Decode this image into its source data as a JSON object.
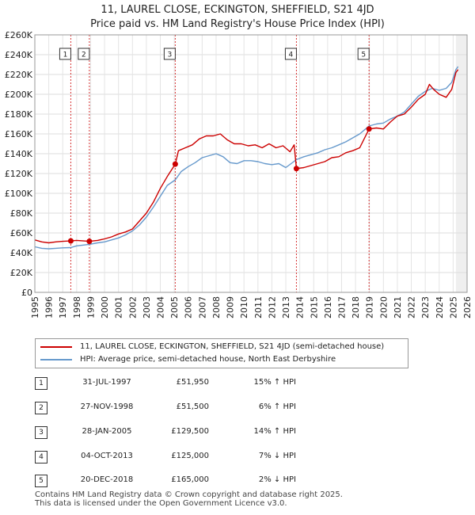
{
  "chart_data": {
    "type": "line",
    "title": "11, LAUREL CLOSE, ECKINGTON, SHEFFIELD, S21 4JD",
    "subtitle": "Price paid vs. HM Land Registry's House Price Index (HPI)",
    "xlim": [
      1995,
      2026
    ],
    "ylim": [
      0,
      260000
    ],
    "x_ticks": [
      1995,
      1996,
      1997,
      1998,
      1999,
      2000,
      2001,
      2002,
      2003,
      2004,
      2005,
      2006,
      2007,
      2008,
      2009,
      2010,
      2011,
      2012,
      2013,
      2014,
      2015,
      2016,
      2017,
      2018,
      2019,
      2020,
      2021,
      2022,
      2023,
      2024,
      2025,
      2026
    ],
    "x_tick_labels": [
      "1995",
      "1996",
      "1997",
      "1998",
      "1999",
      "2000",
      "2001",
      "2002",
      "2003",
      "2004",
      "2005",
      "2006",
      "2007",
      "2008",
      "2009",
      "2010",
      "2011",
      "2012",
      "2013",
      "2014",
      "2015",
      "2016",
      "2017",
      "2018",
      "2019",
      "2020",
      "2021",
      "2022",
      "2023",
      "2024",
      "2025",
      "2026"
    ],
    "y_ticks": [
      0,
      20000,
      40000,
      60000,
      80000,
      100000,
      120000,
      140000,
      160000,
      180000,
      200000,
      220000,
      240000,
      260000
    ],
    "y_tick_labels": [
      "£0",
      "£20K",
      "£40K",
      "£60K",
      "£80K",
      "£100K",
      "£120K",
      "£140K",
      "£160K",
      "£180K",
      "£200K",
      "£220K",
      "£240K",
      "£260K"
    ],
    "colors": {
      "property": "#cc0000",
      "hpi": "#6699cc",
      "band": "#dde6f3",
      "vline": "#cc0000"
    },
    "series": [
      {
        "name": "11, LAUREL CLOSE, ECKINGTON, SHEFFIELD, S21 4JD (semi-detached house)",
        "color": "#cc0000",
        "points": [
          [
            1995.0,
            53000
          ],
          [
            1995.5,
            51000
          ],
          [
            1996.0,
            50000
          ],
          [
            1996.5,
            51000
          ],
          [
            1997.0,
            51500
          ],
          [
            1997.58,
            51950
          ],
          [
            1998.0,
            52500
          ],
          [
            1998.9,
            51500
          ],
          [
            1999.5,
            52500
          ],
          [
            2000.0,
            54000
          ],
          [
            2000.5,
            56000
          ],
          [
            2001.0,
            59000
          ],
          [
            2001.5,
            61000
          ],
          [
            2002.0,
            64000
          ],
          [
            2002.5,
            72000
          ],
          [
            2003.0,
            80000
          ],
          [
            2003.5,
            91000
          ],
          [
            2004.0,
            105000
          ],
          [
            2004.5,
            117000
          ],
          [
            2005.07,
            129500
          ],
          [
            2005.3,
            143000
          ],
          [
            2005.8,
            146000
          ],
          [
            2006.3,
            149000
          ],
          [
            2006.8,
            155000
          ],
          [
            2007.3,
            158000
          ],
          [
            2007.8,
            158000
          ],
          [
            2008.3,
            160000
          ],
          [
            2008.8,
            154000
          ],
          [
            2009.3,
            150000
          ],
          [
            2009.8,
            150000
          ],
          [
            2010.3,
            148000
          ],
          [
            2010.8,
            149000
          ],
          [
            2011.3,
            146000
          ],
          [
            2011.8,
            150000
          ],
          [
            2012.3,
            146000
          ],
          [
            2012.8,
            148000
          ],
          [
            2013.3,
            142000
          ],
          [
            2013.6,
            149000
          ],
          [
            2013.76,
            125000
          ],
          [
            2014.3,
            126000
          ],
          [
            2014.8,
            128000
          ],
          [
            2015.3,
            130000
          ],
          [
            2015.8,
            132000
          ],
          [
            2016.3,
            136000
          ],
          [
            2016.8,
            137000
          ],
          [
            2017.3,
            141000
          ],
          [
            2017.8,
            143000
          ],
          [
            2018.3,
            146000
          ],
          [
            2018.97,
            165000
          ],
          [
            2019.5,
            166000
          ],
          [
            2020.0,
            165000
          ],
          [
            2020.5,
            172000
          ],
          [
            2021.0,
            178000
          ],
          [
            2021.5,
            180000
          ],
          [
            2022.0,
            187000
          ],
          [
            2022.5,
            195000
          ],
          [
            2023.0,
            200000
          ],
          [
            2023.3,
            210000
          ],
          [
            2023.6,
            205000
          ],
          [
            2024.0,
            200000
          ],
          [
            2024.5,
            197000
          ],
          [
            2024.9,
            205000
          ],
          [
            2025.2,
            222000
          ],
          [
            2025.35,
            225000
          ]
        ]
      },
      {
        "name": "HPI: Average price, semi-detached house, North East Derbyshire",
        "color": "#6699cc",
        "points": [
          [
            1995.0,
            46000
          ],
          [
            1995.5,
            44500
          ],
          [
            1996.0,
            44000
          ],
          [
            1996.5,
            44500
          ],
          [
            1997.0,
            45000
          ],
          [
            1997.58,
            45200
          ],
          [
            1998.0,
            47000
          ],
          [
            1998.9,
            48500
          ],
          [
            1999.5,
            50000
          ],
          [
            2000.0,
            51000
          ],
          [
            2000.5,
            53000
          ],
          [
            2001.0,
            55000
          ],
          [
            2001.5,
            58000
          ],
          [
            2002.0,
            62000
          ],
          [
            2002.5,
            68000
          ],
          [
            2003.0,
            76000
          ],
          [
            2003.5,
            86000
          ],
          [
            2004.0,
            97000
          ],
          [
            2004.5,
            108000
          ],
          [
            2005.07,
            113600
          ],
          [
            2005.5,
            122000
          ],
          [
            2006.0,
            127000
          ],
          [
            2006.5,
            131000
          ],
          [
            2007.0,
            136000
          ],
          [
            2007.5,
            138000
          ],
          [
            2008.0,
            140000
          ],
          [
            2008.5,
            137000
          ],
          [
            2009.0,
            131000
          ],
          [
            2009.5,
            130000
          ],
          [
            2010.0,
            133000
          ],
          [
            2010.5,
            133000
          ],
          [
            2011.0,
            132000
          ],
          [
            2011.5,
            130000
          ],
          [
            2012.0,
            129000
          ],
          [
            2012.5,
            130000
          ],
          [
            2013.0,
            126000
          ],
          [
            2013.76,
            134000
          ],
          [
            2014.3,
            137000
          ],
          [
            2014.8,
            139000
          ],
          [
            2015.3,
            141000
          ],
          [
            2015.8,
            144000
          ],
          [
            2016.3,
            146000
          ],
          [
            2016.8,
            149000
          ],
          [
            2017.3,
            152000
          ],
          [
            2017.8,
            156000
          ],
          [
            2018.3,
            160000
          ],
          [
            2018.97,
            168000
          ],
          [
            2019.5,
            170000
          ],
          [
            2020.0,
            171000
          ],
          [
            2020.5,
            175000
          ],
          [
            2021.0,
            178000
          ],
          [
            2021.5,
            182000
          ],
          [
            2022.0,
            190000
          ],
          [
            2022.5,
            198000
          ],
          [
            2023.0,
            203000
          ],
          [
            2023.5,
            206000
          ],
          [
            2024.0,
            204000
          ],
          [
            2024.5,
            206000
          ],
          [
            2024.9,
            212000
          ],
          [
            2025.2,
            225000
          ],
          [
            2025.35,
            228000
          ]
        ]
      }
    ],
    "sales": [
      {
        "label": "1",
        "x": 1997.58,
        "value": 51950
      },
      {
        "label": "2",
        "x": 1998.91,
        "value": 51500
      },
      {
        "label": "3",
        "x": 2005.07,
        "value": 129500
      },
      {
        "label": "4",
        "x": 2013.76,
        "value": 125000
      },
      {
        "label": "5",
        "x": 2018.97,
        "value": 165000
      }
    ],
    "shaded_region": [
      2025.2,
      2026
    ]
  },
  "legend": {
    "property": "11, LAUREL CLOSE, ECKINGTON, SHEFFIELD, S21 4JD (semi-detached house)",
    "hpi": "HPI: Average price, semi-detached house, North East Derbyshire"
  },
  "transactions": [
    {
      "num": "1",
      "date": "31-JUL-1997",
      "price": "£51,950",
      "hpi": "15% ↑ HPI"
    },
    {
      "num": "2",
      "date": "27-NOV-1998",
      "price": "£51,500",
      "hpi": "6% ↑ HPI"
    },
    {
      "num": "3",
      "date": "28-JAN-2005",
      "price": "£129,500",
      "hpi": "14% ↑ HPI"
    },
    {
      "num": "4",
      "date": "04-OCT-2013",
      "price": "£125,000",
      "hpi": "7% ↓ HPI"
    },
    {
      "num": "5",
      "date": "20-DEC-2018",
      "price": "£165,000",
      "hpi": "2% ↓ HPI"
    }
  ],
  "footer": {
    "line1": "Contains HM Land Registry data © Crown copyright and database right 2025.",
    "line2": "This data is licensed under the Open Government Licence v3.0."
  }
}
